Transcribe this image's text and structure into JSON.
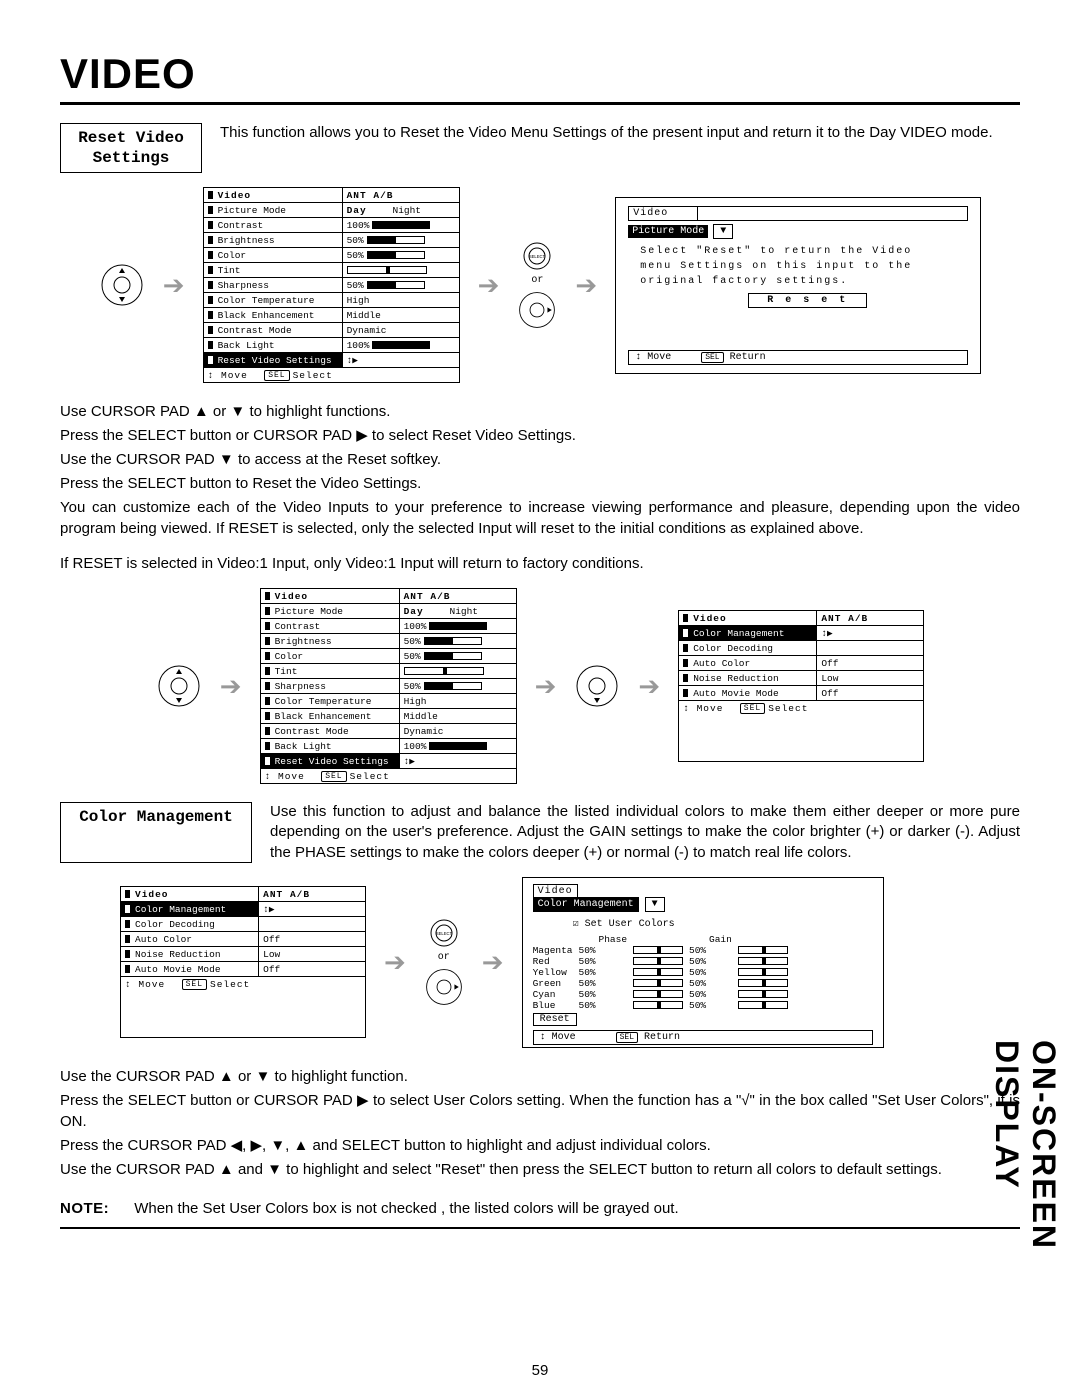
{
  "page_title": "VIDEO",
  "side_label": "ON-SCREEN DISPLAY",
  "page_number": "59",
  "reset_section": {
    "label_line1": "Reset Video",
    "label_line2": "Settings",
    "desc": "This function allows you to Reset the Video Menu Settings of the present input and return it to the Day VIDEO mode."
  },
  "video_menu": {
    "header": "Video",
    "val_header_l": "ANT A/B",
    "col2_day": "Day",
    "col2_night": "Night",
    "rows": [
      {
        "name": "Picture Mode",
        "val": null,
        "type": "daynight"
      },
      {
        "name": "Contrast",
        "val": "100%",
        "bar_pct": 100
      },
      {
        "name": "Brightness",
        "val": "50%",
        "bar_pct": 50
      },
      {
        "name": "Color",
        "val": "50%",
        "bar_pct": 50
      },
      {
        "name": "Tint",
        "val": null,
        "type": "centertick"
      },
      {
        "name": "Sharpness",
        "val": "50%",
        "bar_pct": 50
      },
      {
        "name": "Color Temperature",
        "val": "High"
      },
      {
        "name": "Black Enhancement",
        "val": "Middle"
      },
      {
        "name": "Contrast Mode",
        "val": "Dynamic"
      },
      {
        "name": "Back Light",
        "val": "100%",
        "bar_pct": 100
      }
    ],
    "reset_row": "Reset Video Settings",
    "footer": "↕ Move  SEL Select"
  },
  "reset_popup": {
    "header_video": "Video",
    "picture_mode": "Picture Mode",
    "msg_l1": "Select \"Reset\" to return the Video",
    "msg_l2": "menu Settings on this input to the",
    "msg_l3": "original factory settings.",
    "reset_btn": "R e s e t",
    "foot_move": "↕ Move",
    "foot_return": "SEL Return"
  },
  "or_label": "or",
  "select_label": "SELECT",
  "body1": [
    "Use CURSOR PAD ▲ or ▼ to highlight functions.",
    "Press the SELECT button or CURSOR PAD ▶ to select Reset Video Settings.",
    "Use the CURSOR PAD ▼ to access at the Reset softkey.",
    "Press the SELECT button to Reset the Video Settings.",
    "You can customize each of the Video Inputs to your preference to increase viewing performance and pleasure, depending upon the video program being viewed. If RESET is selected, only the selected Input will reset to the initial conditions as explained above."
  ],
  "body1_extra": "If RESET is selected in Video:1 Input, only Video:1 Input will return to factory conditions.",
  "color_mgmt_menu": {
    "header": "Video",
    "val_header_l": "ANT A/B",
    "sel_row": "Color Management",
    "rows": [
      {
        "name": "Color Decoding",
        "val": ""
      },
      {
        "name": "Auto Color",
        "val": "Off"
      },
      {
        "name": "Noise Reduction",
        "val": "Low"
      },
      {
        "name": "Auto Movie Mode",
        "val": "Off"
      }
    ],
    "footer": "↕ Move  SEL Select"
  },
  "color_section": {
    "label": "Color Management",
    "desc": "Use this function to adjust and balance the listed individual colors to make them either deeper or more pure depending on the user's preference.  Adjust the GAIN settings to make the color brighter (+) or darker (-).  Adjust the PHASE settings to make the colors deeper (+) or normal (-) to match real life colors."
  },
  "user_colors_popup": {
    "header_video": "Video",
    "cm": "Color Management",
    "set_label": "☑ Set User Colors",
    "col_phase": "Phase",
    "col_gain": "Gain",
    "rows": [
      {
        "n": "Magenta",
        "p": "50%",
        "g": "50%"
      },
      {
        "n": "Red",
        "p": "50%",
        "g": "50%"
      },
      {
        "n": "Yellow",
        "p": "50%",
        "g": "50%"
      },
      {
        "n": "Green",
        "p": "50%",
        "g": "50%"
      },
      {
        "n": "Cyan",
        "p": "50%",
        "g": "50%"
      },
      {
        "n": "Blue",
        "p": "50%",
        "g": "50%"
      }
    ],
    "reset": "Reset",
    "foot_move": "↕ Move",
    "foot_return": "SEL Return"
  },
  "body2": [
    "Use the CURSOR PAD ▲ or ▼ to highlight function.",
    "Press the SELECT button or CURSOR PAD ▶ to select User Colors setting.  When the function has a \"√\" in the box called \"Set User Colors\", it is ON.",
    "Press  the CURSOR PAD ◀, ▶, ▼, ▲ and SELECT button to highlight and adjust individual colors.",
    "Use  the CURSOR PAD ▲ and ▼ to highlight and select \"Reset\" then press the SELECT button to return all colors to default settings."
  ],
  "note_label": "NOTE:",
  "note_text": "When the Set User Colors box is not checked , the listed colors will be grayed out."
}
